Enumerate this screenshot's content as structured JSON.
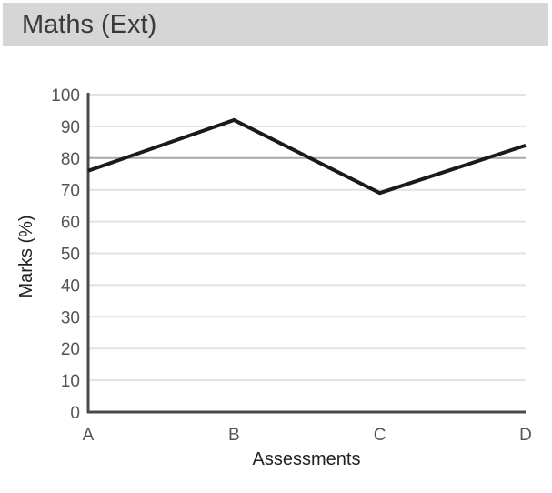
{
  "header": {
    "title": "Maths (Ext)"
  },
  "chart_data": {
    "type": "line",
    "categories": [
      "A",
      "B",
      "C",
      "D"
    ],
    "series": [
      {
        "values": [
          76,
          92,
          69,
          84
        ],
        "color": "#1a1a1a"
      }
    ],
    "xlabel": "Assessments",
    "ylabel": "Marks (%)",
    "ylim": [
      0,
      100
    ],
    "yticks": [
      0,
      10,
      20,
      30,
      40,
      50,
      60,
      70,
      80,
      90,
      100
    ],
    "ytick_labels": [
      "0",
      "10",
      "20",
      "30",
      "40",
      "50",
      "60",
      "70",
      "80",
      "90",
      "100"
    ],
    "reference_line": 80,
    "grid": true,
    "colors": {
      "grid": "#e2e2e2",
      "reference": "#a8a8a8",
      "axis": "#4a4a4a",
      "header_bg": "#d6d6d6"
    }
  }
}
